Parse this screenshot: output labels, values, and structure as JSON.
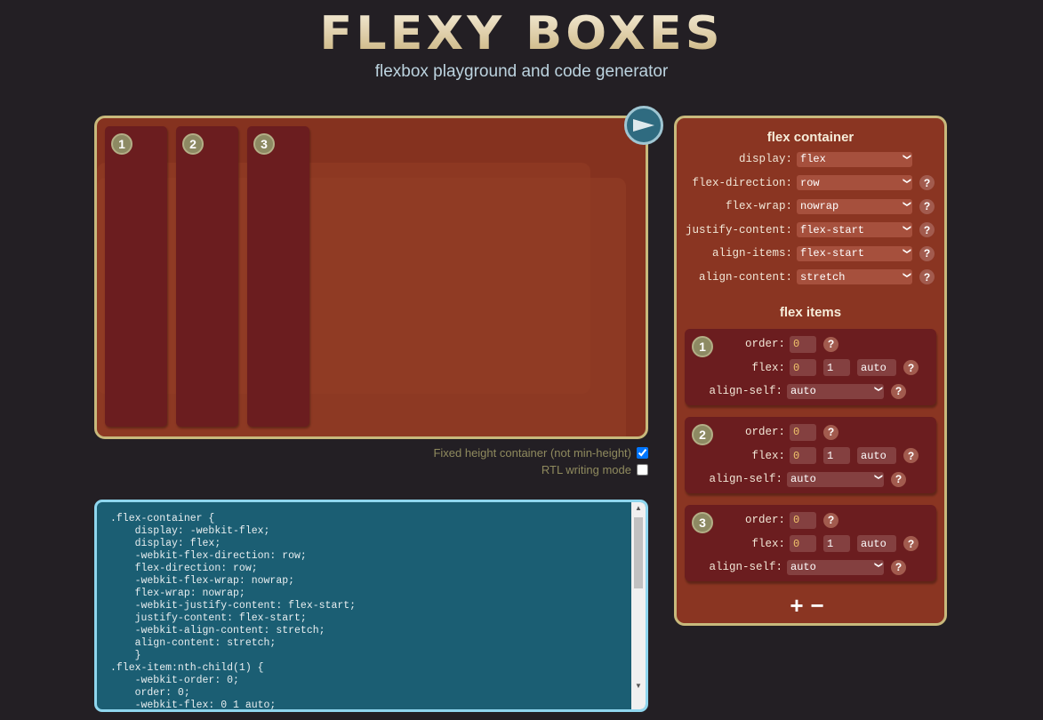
{
  "header": {
    "logo": "FLEXY BOXES",
    "subtitle": "flexbox playground and code generator"
  },
  "stage": {
    "items": [
      "1",
      "2",
      "3"
    ],
    "play_icon": "play-triangle-icon"
  },
  "options": [
    {
      "label": "Fixed height container (not min-height)",
      "checked": true
    },
    {
      "label": "RTL writing mode",
      "checked": false
    }
  ],
  "code": ".flex-container {\n    display: -webkit-flex;\n    display: flex;\n    -webkit-flex-direction: row;\n    flex-direction: row;\n    -webkit-flex-wrap: nowrap;\n    flex-wrap: nowrap;\n    -webkit-justify-content: flex-start;\n    justify-content: flex-start;\n    -webkit-align-content: stretch;\n    align-content: stretch;\n    }\n.flex-item:nth-child(1) {\n    -webkit-order: 0;\n    order: 0;\n    -webkit-flex: 0 1 auto;",
  "panel": {
    "container_title": "flex container",
    "container_props": [
      {
        "label": "display:",
        "value": "flex",
        "help": false
      },
      {
        "label": "flex-direction:",
        "value": "row",
        "help": true
      },
      {
        "label": "flex-wrap:",
        "value": "nowrap",
        "help": true
      },
      {
        "label": "justify-content:",
        "value": "flex-start",
        "help": true
      },
      {
        "label": "align-items:",
        "value": "flex-start",
        "help": true
      },
      {
        "label": "align-content:",
        "value": "stretch",
        "help": true
      }
    ],
    "items_title": "flex items",
    "items": [
      {
        "num": "1",
        "order_label": "order:",
        "order": "0",
        "flex_label": "flex:",
        "grow": "0",
        "shrink": "1",
        "basis": "auto",
        "align_label": "align-self:",
        "align": "auto"
      },
      {
        "num": "2",
        "order_label": "order:",
        "order": "0",
        "flex_label": "flex:",
        "grow": "0",
        "shrink": "1",
        "basis": "auto",
        "align_label": "align-self:",
        "align": "auto"
      },
      {
        "num": "3",
        "order_label": "order:",
        "order": "0",
        "flex_label": "flex:",
        "grow": "0",
        "shrink": "1",
        "basis": "auto",
        "align_label": "align-self:",
        "align": "auto"
      }
    ],
    "help": "?",
    "add": "+",
    "remove": "−"
  }
}
